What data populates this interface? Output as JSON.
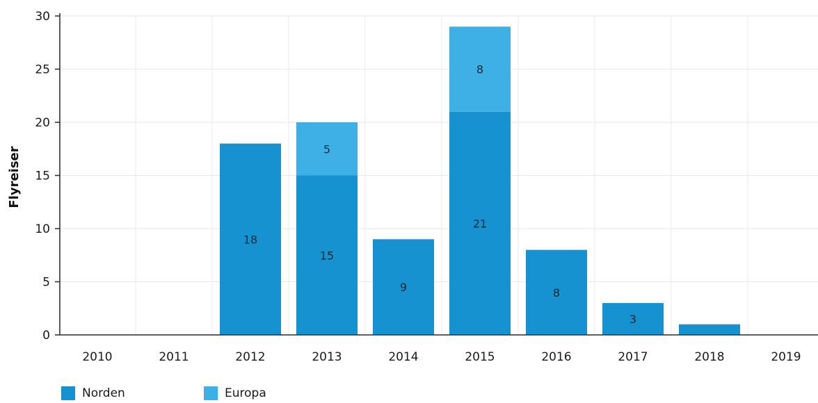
{
  "chart_data": {
    "type": "bar",
    "stacked": true,
    "categories": [
      "2010",
      "2011",
      "2012",
      "2013",
      "2014",
      "2015",
      "2016",
      "2017",
      "2018",
      "2019"
    ],
    "series": [
      {
        "name": "Norden",
        "values": [
          0,
          0,
          18,
          15,
          9,
          21,
          8,
          3,
          1,
          0
        ],
        "color": "#1592cf",
        "labels": [
          "",
          "",
          "18",
          "15",
          "9",
          "21",
          "8",
          "3",
          "",
          ""
        ]
      },
      {
        "name": "Europa",
        "values": [
          0,
          0,
          0,
          5,
          0,
          8,
          0,
          0,
          0,
          0
        ],
        "color": "#3fb0e6",
        "labels": [
          "",
          "",
          "",
          "5",
          "",
          "8",
          "",
          "",
          "",
          ""
        ]
      }
    ],
    "ylabel": "Flyreiser",
    "xlabel": "",
    "ylim": [
      0,
      30
    ],
    "yticks": [
      "0",
      "5",
      "10",
      "15",
      "20",
      "25",
      "30"
    ],
    "grid": true,
    "legend_position": "bottom-left"
  }
}
